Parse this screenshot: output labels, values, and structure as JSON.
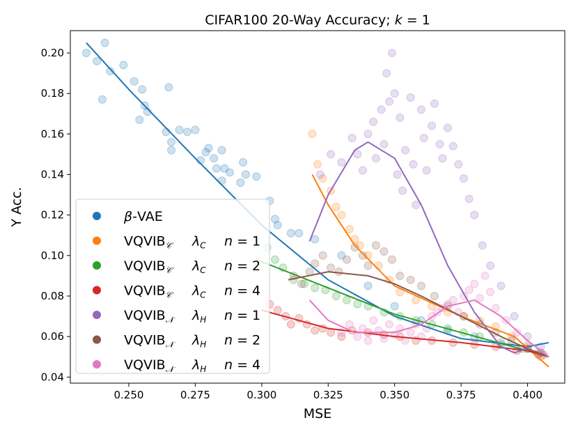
{
  "chart_data": {
    "type": "scatter",
    "title": "CIFAR100 20-Way Accuracy; k = 1",
    "title_parts": {
      "prefix": "CIFAR100 20-Way Accuracy; ",
      "var": "k",
      "suffix": " = 1"
    },
    "xlabel": "MSE",
    "ylabel": "Y Acc.",
    "xlim": [
      0.228,
      0.414
    ],
    "ylim": [
      0.037,
      0.211
    ],
    "x_ticks": [
      0.25,
      0.275,
      0.3,
      0.325,
      0.35,
      0.375,
      0.4
    ],
    "x_tick_labels": [
      "0.250",
      "0.275",
      "0.300",
      "0.325",
      "0.350",
      "0.375",
      "0.400"
    ],
    "y_ticks": [
      0.04,
      0.06,
      0.08,
      0.1,
      0.12,
      0.14,
      0.16,
      0.18,
      0.2
    ],
    "y_tick_labels": [
      "0.04",
      "0.06",
      "0.08",
      "0.10",
      "0.12",
      "0.14",
      "0.16",
      "0.18",
      "0.20"
    ],
    "grid": false,
    "legend_position": "lower-left",
    "series": [
      {
        "name": "β-VAE",
        "legend": {
          "base": "β-VAE",
          "sub": "",
          "lambda": "",
          "lambda_sub": "",
          "n": ""
        },
        "color": "#1f77b4",
        "scatter": [
          [
            0.234,
            0.2
          ],
          [
            0.238,
            0.196
          ],
          [
            0.241,
            0.205
          ],
          [
            0.243,
            0.191
          ],
          [
            0.24,
            0.177
          ],
          [
            0.248,
            0.194
          ],
          [
            0.252,
            0.186
          ],
          [
            0.255,
            0.182
          ],
          [
            0.256,
            0.174
          ],
          [
            0.254,
            0.167
          ],
          [
            0.257,
            0.171
          ],
          [
            0.265,
            0.183
          ],
          [
            0.264,
            0.161
          ],
          [
            0.266,
            0.152
          ],
          [
            0.266,
            0.156
          ],
          [
            0.269,
            0.162
          ],
          [
            0.272,
            0.161
          ],
          [
            0.275,
            0.162
          ],
          [
            0.277,
            0.147
          ],
          [
            0.279,
            0.151
          ],
          [
            0.28,
            0.153
          ],
          [
            0.282,
            0.148
          ],
          [
            0.283,
            0.143
          ],
          [
            0.285,
            0.152
          ],
          [
            0.286,
            0.143
          ],
          [
            0.285,
            0.137
          ],
          [
            0.288,
            0.141
          ],
          [
            0.292,
            0.136
          ],
          [
            0.293,
            0.146
          ],
          [
            0.294,
            0.14
          ],
          [
            0.298,
            0.139
          ],
          [
            0.303,
            0.127
          ],
          [
            0.305,
            0.118
          ],
          [
            0.306,
            0.115
          ],
          [
            0.311,
            0.111
          ],
          [
            0.314,
            0.111
          ],
          [
            0.32,
            0.108
          ],
          [
            0.33,
            0.1
          ],
          [
            0.34,
            0.085
          ],
          [
            0.35,
            0.075
          ],
          [
            0.36,
            0.068
          ],
          [
            0.37,
            0.063
          ],
          [
            0.38,
            0.06
          ],
          [
            0.39,
            0.056
          ],
          [
            0.4,
            0.054
          ],
          [
            0.405,
            0.052
          ]
        ],
        "fit": [
          [
            0.234,
            0.205
          ],
          [
            0.25,
            0.182
          ],
          [
            0.275,
            0.148
          ],
          [
            0.3,
            0.115
          ],
          [
            0.325,
            0.088
          ],
          [
            0.35,
            0.07
          ],
          [
            0.375,
            0.059
          ],
          [
            0.4,
            0.055
          ],
          [
            0.408,
            0.057
          ]
        ]
      },
      {
        "name": "VQVIB_C λ_C n=1",
        "legend": {
          "base": "VQVIB",
          "sub": "𝒞",
          "lambda": "λ",
          "lambda_sub": "C",
          "n": "n = 1"
        },
        "color": "#ff7f0e",
        "scatter": [
          [
            0.319,
            0.16
          ],
          [
            0.321,
            0.145
          ],
          [
            0.323,
            0.138
          ],
          [
            0.326,
            0.132
          ],
          [
            0.328,
            0.124
          ],
          [
            0.33,
            0.12
          ],
          [
            0.333,
            0.113
          ],
          [
            0.335,
            0.108
          ],
          [
            0.337,
            0.105
          ],
          [
            0.34,
            0.1
          ],
          [
            0.344,
            0.095
          ],
          [
            0.348,
            0.088
          ],
          [
            0.352,
            0.082
          ],
          [
            0.358,
            0.078
          ],
          [
            0.364,
            0.075
          ],
          [
            0.37,
            0.072
          ],
          [
            0.376,
            0.07
          ],
          [
            0.382,
            0.068
          ],
          [
            0.388,
            0.065
          ],
          [
            0.394,
            0.06
          ],
          [
            0.4,
            0.055
          ],
          [
            0.405,
            0.05
          ]
        ],
        "fit": [
          [
            0.319,
            0.14
          ],
          [
            0.325,
            0.125
          ],
          [
            0.335,
            0.105
          ],
          [
            0.35,
            0.085
          ],
          [
            0.375,
            0.07
          ],
          [
            0.395,
            0.06
          ],
          [
            0.408,
            0.045
          ]
        ]
      },
      {
        "name": "VQVIB_C λ_C n=2",
        "legend": {
          "base": "VQVIB",
          "sub": "𝒞",
          "lambda": "λ",
          "lambda_sub": "C",
          "n": "n = 2"
        },
        "color": "#2ca02c",
        "scatter": [
          [
            0.302,
            0.104
          ],
          [
            0.305,
            0.098
          ],
          [
            0.308,
            0.094
          ],
          [
            0.312,
            0.088
          ],
          [
            0.316,
            0.086
          ],
          [
            0.32,
            0.084
          ],
          [
            0.324,
            0.083
          ],
          [
            0.328,
            0.08
          ],
          [
            0.332,
            0.078
          ],
          [
            0.336,
            0.076
          ],
          [
            0.34,
            0.075
          ],
          [
            0.346,
            0.072
          ],
          [
            0.352,
            0.07
          ],
          [
            0.358,
            0.068
          ],
          [
            0.364,
            0.066
          ],
          [
            0.37,
            0.064
          ],
          [
            0.376,
            0.062
          ],
          [
            0.382,
            0.06
          ],
          [
            0.39,
            0.057
          ],
          [
            0.398,
            0.054
          ],
          [
            0.404,
            0.052
          ]
        ],
        "fit": [
          [
            0.298,
            0.098
          ],
          [
            0.325,
            0.084
          ],
          [
            0.35,
            0.071
          ],
          [
            0.375,
            0.062
          ],
          [
            0.4,
            0.053
          ],
          [
            0.408,
            0.05
          ]
        ]
      },
      {
        "name": "VQVIB_C λ_C n=4",
        "legend": {
          "base": "VQVIB",
          "sub": "𝒞",
          "lambda": "λ",
          "lambda_sub": "C",
          "n": "n = 4"
        },
        "color": "#d62728",
        "scatter": [
          [
            0.303,
            0.076
          ],
          [
            0.306,
            0.073
          ],
          [
            0.309,
            0.07
          ],
          [
            0.311,
            0.066
          ],
          [
            0.314,
            0.069
          ],
          [
            0.317,
            0.066
          ],
          [
            0.32,
            0.063
          ],
          [
            0.323,
            0.064
          ],
          [
            0.326,
            0.062
          ],
          [
            0.33,
            0.06
          ],
          [
            0.334,
            0.063
          ],
          [
            0.34,
            0.062
          ],
          [
            0.346,
            0.061
          ],
          [
            0.352,
            0.06
          ],
          [
            0.358,
            0.058
          ],
          [
            0.364,
            0.058
          ],
          [
            0.372,
            0.057
          ],
          [
            0.38,
            0.056
          ],
          [
            0.388,
            0.055
          ],
          [
            0.396,
            0.053
          ],
          [
            0.404,
            0.051
          ]
        ],
        "fit": [
          [
            0.3,
            0.073
          ],
          [
            0.325,
            0.064
          ],
          [
            0.35,
            0.06
          ],
          [
            0.375,
            0.057
          ],
          [
            0.4,
            0.053
          ],
          [
            0.408,
            0.05
          ]
        ]
      },
      {
        "name": "VQVIB_N λ_H n=1",
        "legend": {
          "base": "VQVIB",
          "sub": "𝒩",
          "lambda": "λ",
          "lambda_sub": "H",
          "n": "n = 1"
        },
        "color": "#9467bd",
        "scatter": [
          [
            0.322,
            0.14
          ],
          [
            0.326,
            0.15
          ],
          [
            0.33,
            0.146
          ],
          [
            0.334,
            0.158
          ],
          [
            0.336,
            0.15
          ],
          [
            0.338,
            0.142
          ],
          [
            0.34,
            0.16
          ],
          [
            0.342,
            0.166
          ],
          [
            0.343,
            0.148
          ],
          [
            0.345,
            0.172
          ],
          [
            0.346,
            0.155
          ],
          [
            0.348,
            0.176
          ],
          [
            0.349,
            0.2
          ],
          [
            0.347,
            0.19
          ],
          [
            0.35,
            0.18
          ],
          [
            0.351,
            0.14
          ],
          [
            0.352,
            0.168
          ],
          [
            0.353,
            0.132
          ],
          [
            0.354,
            0.152
          ],
          [
            0.356,
            0.178
          ],
          [
            0.357,
            0.145
          ],
          [
            0.358,
            0.125
          ],
          [
            0.36,
            0.172
          ],
          [
            0.361,
            0.158
          ],
          [
            0.362,
            0.142
          ],
          [
            0.364,
            0.164
          ],
          [
            0.365,
            0.175
          ],
          [
            0.367,
            0.155
          ],
          [
            0.368,
            0.148
          ],
          [
            0.37,
            0.163
          ],
          [
            0.372,
            0.154
          ],
          [
            0.374,
            0.145
          ],
          [
            0.376,
            0.138
          ],
          [
            0.378,
            0.128
          ],
          [
            0.38,
            0.12
          ],
          [
            0.383,
            0.105
          ],
          [
            0.386,
            0.095
          ],
          [
            0.39,
            0.085
          ],
          [
            0.395,
            0.07
          ],
          [
            0.4,
            0.06
          ],
          [
            0.405,
            0.055
          ]
        ],
        "fit": [
          [
            0.318,
            0.107
          ],
          [
            0.325,
            0.13
          ],
          [
            0.335,
            0.152
          ],
          [
            0.34,
            0.156
          ],
          [
            0.35,
            0.148
          ],
          [
            0.36,
            0.125
          ],
          [
            0.37,
            0.095
          ],
          [
            0.38,
            0.072
          ],
          [
            0.39,
            0.055
          ],
          [
            0.395,
            0.052
          ],
          [
            0.4,
            0.054
          ],
          [
            0.408,
            0.05
          ]
        ]
      },
      {
        "name": "VQVIB_N λ_H n=2",
        "legend": {
          "base": "VQVIB",
          "sub": "𝒩",
          "lambda": "λ",
          "lambda_sub": "H",
          "n": "n = 2"
        },
        "color": "#8c564b",
        "scatter": [
          [
            0.312,
            0.09
          ],
          [
            0.315,
            0.086
          ],
          [
            0.318,
            0.092
          ],
          [
            0.32,
            0.096
          ],
          [
            0.323,
            0.1
          ],
          [
            0.326,
            0.094
          ],
          [
            0.329,
            0.092
          ],
          [
            0.332,
            0.098
          ],
          [
            0.335,
            0.104
          ],
          [
            0.338,
            0.1
          ],
          [
            0.34,
            0.095
          ],
          [
            0.343,
            0.105
          ],
          [
            0.346,
            0.102
          ],
          [
            0.349,
            0.098
          ],
          [
            0.352,
            0.09
          ],
          [
            0.356,
            0.088
          ],
          [
            0.36,
            0.085
          ],
          [
            0.365,
            0.08
          ],
          [
            0.37,
            0.075
          ],
          [
            0.376,
            0.07
          ],
          [
            0.382,
            0.066
          ],
          [
            0.388,
            0.062
          ],
          [
            0.394,
            0.058
          ],
          [
            0.4,
            0.054
          ],
          [
            0.406,
            0.051
          ]
        ],
        "fit": [
          [
            0.31,
            0.088
          ],
          [
            0.325,
            0.092
          ],
          [
            0.34,
            0.09
          ],
          [
            0.35,
            0.086
          ],
          [
            0.36,
            0.08
          ],
          [
            0.375,
            0.07
          ],
          [
            0.39,
            0.06
          ],
          [
            0.4,
            0.054
          ],
          [
            0.408,
            0.05
          ]
        ]
      },
      {
        "name": "VQVIB_N λ_H n=4",
        "legend": {
          "base": "VQVIB",
          "sub": "𝒩",
          "lambda": "λ",
          "lambda_sub": "H",
          "n": "n = 4"
        },
        "color": "#e377c2",
        "scatter": [
          [
            0.33,
            0.062
          ],
          [
            0.333,
            0.066
          ],
          [
            0.336,
            0.06
          ],
          [
            0.338,
            0.064
          ],
          [
            0.34,
            0.058
          ],
          [
            0.342,
            0.068
          ],
          [
            0.344,
            0.063
          ],
          [
            0.346,
            0.059
          ],
          [
            0.348,
            0.066
          ],
          [
            0.35,
            0.061
          ],
          [
            0.352,
            0.064
          ],
          [
            0.354,
            0.058
          ],
          [
            0.356,
            0.062
          ],
          [
            0.358,
            0.066
          ],
          [
            0.36,
            0.06
          ],
          [
            0.362,
            0.064
          ],
          [
            0.364,
            0.07
          ],
          [
            0.366,
            0.072
          ],
          [
            0.368,
            0.074
          ],
          [
            0.37,
            0.076
          ],
          [
            0.372,
            0.078
          ],
          [
            0.374,
            0.072
          ],
          [
            0.376,
            0.08
          ],
          [
            0.378,
            0.083
          ],
          [
            0.38,
            0.086
          ],
          [
            0.382,
            0.079
          ],
          [
            0.384,
            0.09
          ],
          [
            0.386,
            0.082
          ],
          [
            0.388,
            0.074
          ],
          [
            0.392,
            0.068
          ],
          [
            0.396,
            0.062
          ],
          [
            0.4,
            0.056
          ],
          [
            0.405,
            0.052
          ]
        ],
        "fit": [
          [
            0.318,
            0.078
          ],
          [
            0.325,
            0.068
          ],
          [
            0.335,
            0.062
          ],
          [
            0.35,
            0.062
          ],
          [
            0.36,
            0.066
          ],
          [
            0.37,
            0.075
          ],
          [
            0.38,
            0.078
          ],
          [
            0.39,
            0.07
          ],
          [
            0.4,
            0.058
          ],
          [
            0.408,
            0.05
          ]
        ]
      }
    ]
  }
}
